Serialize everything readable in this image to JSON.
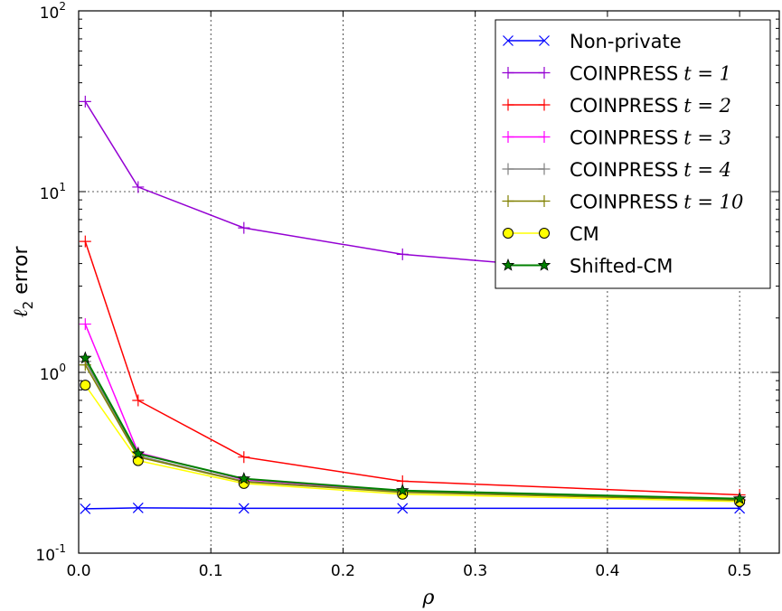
{
  "chart_data": {
    "type": "line",
    "title": "",
    "xlabel": "ρ",
    "ylabel": "ℓ2 error",
    "xlim": [
      0.0,
      0.53
    ],
    "ylim": [
      0.1,
      100
    ],
    "yscale": "log",
    "grid": true,
    "legend_position": "top-right",
    "x_ticks": [
      "0.0",
      "0.1",
      "0.2",
      "0.3",
      "0.4",
      "0.5"
    ],
    "x_tick_values": [
      0.0,
      0.1,
      0.2,
      0.3,
      0.4,
      0.5
    ],
    "y_ticks": [
      {
        "value": 0.1,
        "base": "10",
        "exp": "-1"
      },
      {
        "value": 1,
        "base": "10",
        "exp": "0"
      },
      {
        "value": 10,
        "base": "10",
        "exp": "1"
      },
      {
        "value": 100,
        "base": "10",
        "exp": "2"
      }
    ],
    "x": [
      0.005,
      0.045,
      0.125,
      0.245,
      0.5
    ],
    "series": [
      {
        "name": "Non-private",
        "name_math": "",
        "color": "#0000ff",
        "marker": "x",
        "values": [
          0.176,
          0.178,
          0.177,
          0.177,
          0.177
        ]
      },
      {
        "name": "COINPRESS",
        "name_math": "t = 1",
        "color": "#9400d3",
        "marker": "+",
        "values": [
          31.5,
          10.6,
          6.3,
          4.5,
          3.15
        ]
      },
      {
        "name": "COINPRESS",
        "name_math": "t = 2",
        "color": "#ff0000",
        "marker": "+",
        "values": [
          5.3,
          0.7,
          0.34,
          0.25,
          0.21
        ]
      },
      {
        "name": "COINPRESS",
        "name_math": "t = 3",
        "color": "#ff00ff",
        "marker": "+",
        "values": [
          1.85,
          0.36,
          0.255,
          0.22,
          0.198
        ]
      },
      {
        "name": "COINPRESS",
        "name_math": "t = 4",
        "color": "#808080",
        "marker": "+",
        "values": [
          1.15,
          0.345,
          0.25,
          0.218,
          0.197
        ]
      },
      {
        "name": "COINPRESS",
        "name_math": "t = 10",
        "color": "#808000",
        "marker": "+",
        "values": [
          1.1,
          0.34,
          0.248,
          0.217,
          0.196
        ]
      },
      {
        "name": "CM",
        "name_math": "",
        "color": "#ffff00",
        "marker": "o",
        "values": [
          0.85,
          0.325,
          0.243,
          0.212,
          0.193
        ]
      },
      {
        "name": "Shifted-CM",
        "name_math": "",
        "color": "#008000",
        "marker": "*",
        "values": [
          1.2,
          0.355,
          0.258,
          0.222,
          0.2
        ]
      }
    ]
  }
}
